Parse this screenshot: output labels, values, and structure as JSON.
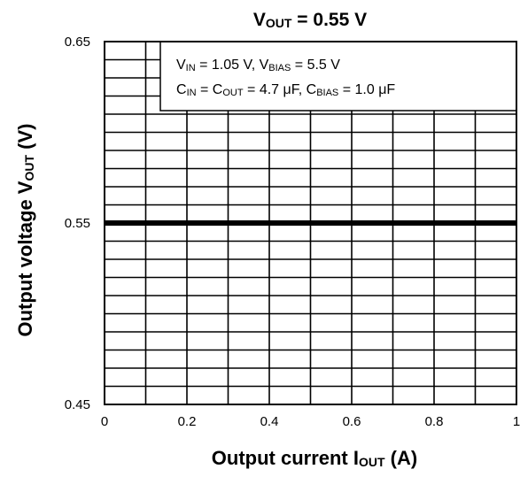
{
  "chart_data": {
    "type": "line",
    "title": {
      "main": "V",
      "sub": "OUT",
      "suffix": " = 0.55 V"
    },
    "xlabel": {
      "main": "Output current",
      "symbol": "I",
      "sub": "OUT",
      "unit": "(A)"
    },
    "ylabel": {
      "main": "Output voltage",
      "symbol": "V",
      "sub": "OUT",
      "unit": "(V)"
    },
    "xlim": [
      0,
      1
    ],
    "ylim": [
      0.45,
      0.65
    ],
    "xticks": [
      0,
      0.2,
      0.4,
      0.6,
      0.8,
      1
    ],
    "xtick_labels": [
      "0",
      "0.2",
      "0.4",
      "0.6",
      "0.8",
      "1"
    ],
    "yticks": [
      0.45,
      0.55,
      0.65
    ],
    "ytick_labels": [
      "0.45",
      "0.55",
      "0.65"
    ],
    "grid": {
      "on": true,
      "x_divisions": 10,
      "y_divisions": 20
    },
    "annotation": {
      "line1": [
        {
          "t": "V"
        },
        {
          "t": "IN",
          "sub": true
        },
        {
          "t": " = 1.05 V, V"
        },
        {
          "t": "BIAS",
          "sub": true
        },
        {
          "t": " = 5.5 V"
        }
      ],
      "line2": [
        {
          "t": "C"
        },
        {
          "t": "IN",
          "sub": true
        },
        {
          "t": " = C"
        },
        {
          "t": "OUT",
          "sub": true
        },
        {
          "t": " = 4.7 μF, C"
        },
        {
          "t": "BIAS",
          "sub": true
        },
        {
          "t": " = 1.0 μF"
        }
      ]
    },
    "series": [
      {
        "x": [
          0,
          0.2,
          0.4,
          0.6,
          0.8,
          1
        ],
        "y": [
          0.55,
          0.55,
          0.55,
          0.55,
          0.55,
          0.55
        ],
        "color": "#000000"
      }
    ]
  }
}
